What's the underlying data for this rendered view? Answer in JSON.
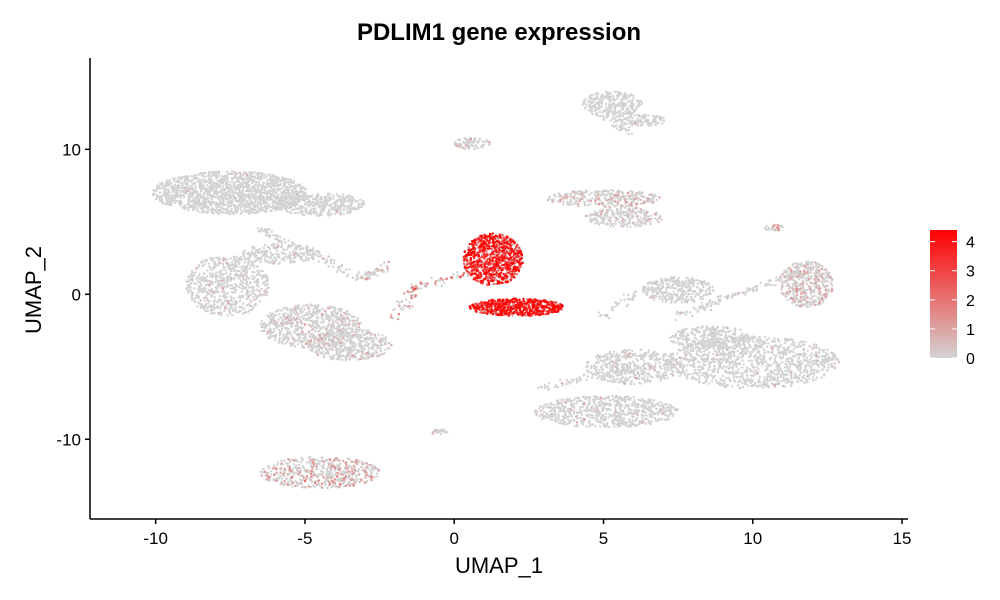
{
  "chart_data": {
    "type": "scatter",
    "title": "PDLIM1 gene expression",
    "xlabel": "UMAP_1",
    "ylabel": "UMAP_2",
    "xlim": [
      -12.2,
      15.2
    ],
    "ylim": [
      -15.5,
      16.3
    ],
    "x_ticks": [
      -10,
      -5,
      0,
      5,
      10,
      15
    ],
    "y_ticks": [
      -10,
      0,
      10
    ],
    "grid": false,
    "legend": {
      "placement": "right",
      "type": "colorbar",
      "range": [
        0,
        4.4
      ],
      "ticks": [
        0,
        1,
        2,
        3,
        4
      ],
      "low_color": "#d3d3d3",
      "high_color": "#ff0000"
    },
    "clusters": [
      {
        "cx": -7.5,
        "cy": 7.0,
        "rx": 2.6,
        "ry": 1.5,
        "n": 1500,
        "expr_mean": 0.05,
        "pos_frac": 0.03
      },
      {
        "cx": -4.5,
        "cy": 6.2,
        "rx": 1.5,
        "ry": 0.8,
        "n": 400,
        "expr_mean": 0.05,
        "pos_frac": 0.03
      },
      {
        "cx": -7.6,
        "cy": 0.6,
        "rx": 1.4,
        "ry": 2.1,
        "n": 650,
        "expr_mean": 0.3,
        "pos_frac": 0.1
      },
      {
        "cx": -4.8,
        "cy": -2.2,
        "rx": 1.7,
        "ry": 1.5,
        "n": 700,
        "expr_mean": 0.35,
        "pos_frac": 0.14
      },
      {
        "cx": -3.5,
        "cy": -3.5,
        "rx": 1.4,
        "ry": 1.1,
        "n": 450,
        "expr_mean": 0.35,
        "pos_frac": 0.14
      },
      {
        "cx": -5.8,
        "cy": 2.8,
        "rx": 1.3,
        "ry": 0.7,
        "n": 220,
        "expr_mean": 0.15,
        "pos_frac": 0.06
      },
      {
        "cx": -4.5,
        "cy": -12.3,
        "rx": 2.0,
        "ry": 1.1,
        "n": 550,
        "expr_mean": 0.8,
        "pos_frac": 0.4
      },
      {
        "cx": 1.3,
        "cy": 2.4,
        "rx": 1.0,
        "ry": 1.8,
        "n": 900,
        "expr_mean": 3.1,
        "pos_frac": 1.0
      },
      {
        "cx": 2.1,
        "cy": -0.9,
        "rx": 1.6,
        "ry": 0.6,
        "n": 650,
        "expr_mean": 3.3,
        "pos_frac": 1.0
      },
      {
        "cx": 0.6,
        "cy": 10.4,
        "rx": 0.6,
        "ry": 0.4,
        "n": 80,
        "expr_mean": 0.5,
        "pos_frac": 0.3
      },
      {
        "cx": 5.3,
        "cy": 13.1,
        "rx": 1.0,
        "ry": 0.9,
        "n": 280,
        "expr_mean": 0.05,
        "pos_frac": 0.03
      },
      {
        "cx": 6.3,
        "cy": 12.0,
        "rx": 0.8,
        "ry": 0.4,
        "n": 110,
        "expr_mean": 0.2,
        "pos_frac": 0.1
      },
      {
        "cx": 5.0,
        "cy": 6.6,
        "rx": 1.9,
        "ry": 0.6,
        "n": 320,
        "expr_mean": 0.6,
        "pos_frac": 0.3
      },
      {
        "cx": 5.7,
        "cy": 5.3,
        "rx": 1.3,
        "ry": 0.7,
        "n": 250,
        "expr_mean": 0.4,
        "pos_frac": 0.2
      },
      {
        "cx": 7.5,
        "cy": 0.3,
        "rx": 1.2,
        "ry": 0.9,
        "n": 330,
        "expr_mean": 0.1,
        "pos_frac": 0.05
      },
      {
        "cx": 11.8,
        "cy": 0.7,
        "rx": 0.9,
        "ry": 1.6,
        "n": 500,
        "expr_mean": 0.6,
        "pos_frac": 0.3
      },
      {
        "cx": 10.0,
        "cy": -4.7,
        "rx": 2.9,
        "ry": 1.8,
        "n": 1100,
        "expr_mean": 0.2,
        "pos_frac": 0.07
      },
      {
        "cx": 6.0,
        "cy": -5.0,
        "rx": 1.6,
        "ry": 1.2,
        "n": 450,
        "expr_mean": 0.25,
        "pos_frac": 0.08
      },
      {
        "cx": 5.1,
        "cy": -8.1,
        "rx": 2.4,
        "ry": 1.1,
        "n": 700,
        "expr_mean": 0.25,
        "pos_frac": 0.08
      },
      {
        "cx": 8.6,
        "cy": -3.0,
        "rx": 1.4,
        "ry": 0.8,
        "n": 300,
        "expr_mean": 0.15,
        "pos_frac": 0.07
      },
      {
        "cx": -0.5,
        "cy": -9.5,
        "rx": 0.3,
        "ry": 0.2,
        "n": 25,
        "expr_mean": 0.2,
        "pos_frac": 0.1
      },
      {
        "cx": 10.7,
        "cy": 4.6,
        "rx": 0.4,
        "ry": 0.2,
        "n": 25,
        "expr_mean": 1.0,
        "pos_frac": 0.5
      }
    ],
    "streaks": [
      {
        "from": [
          -6.5,
          4.5
        ],
        "to": [
          -3.0,
          1.0
        ],
        "n": 120,
        "expr_mean": 0.15,
        "pos_frac": 0.1
      },
      {
        "from": [
          -3.0,
          1.0
        ],
        "to": [
          -2.3,
          2.0
        ],
        "n": 40,
        "expr_mean": 0.4,
        "pos_frac": 0.3
      },
      {
        "from": [
          -1.5,
          0.3
        ],
        "to": [
          0.5,
          1.5
        ],
        "n": 60,
        "expr_mean": 1.5,
        "pos_frac": 0.6
      },
      {
        "from": [
          -2.0,
          -1.5
        ],
        "to": [
          -1.2,
          0.5
        ],
        "n": 40,
        "expr_mean": 1.2,
        "pos_frac": 0.5
      },
      {
        "from": [
          5.0,
          12.5
        ],
        "to": [
          5.8,
          11.2
        ],
        "n": 35,
        "expr_mean": 0.1,
        "pos_frac": 0.05
      },
      {
        "from": [
          7.5,
          -1.5
        ],
        "to": [
          11.5,
          1.5
        ],
        "n": 120,
        "expr_mean": 0.3,
        "pos_frac": 0.15
      },
      {
        "from": [
          2.8,
          -6.5
        ],
        "to": [
          6.0,
          -5.0
        ],
        "n": 60,
        "expr_mean": 0.2,
        "pos_frac": 0.1
      },
      {
        "from": [
          6.0,
          0.0
        ],
        "to": [
          5.0,
          -1.5
        ],
        "n": 35,
        "expr_mean": 0.1,
        "pos_frac": 0.05
      }
    ]
  }
}
